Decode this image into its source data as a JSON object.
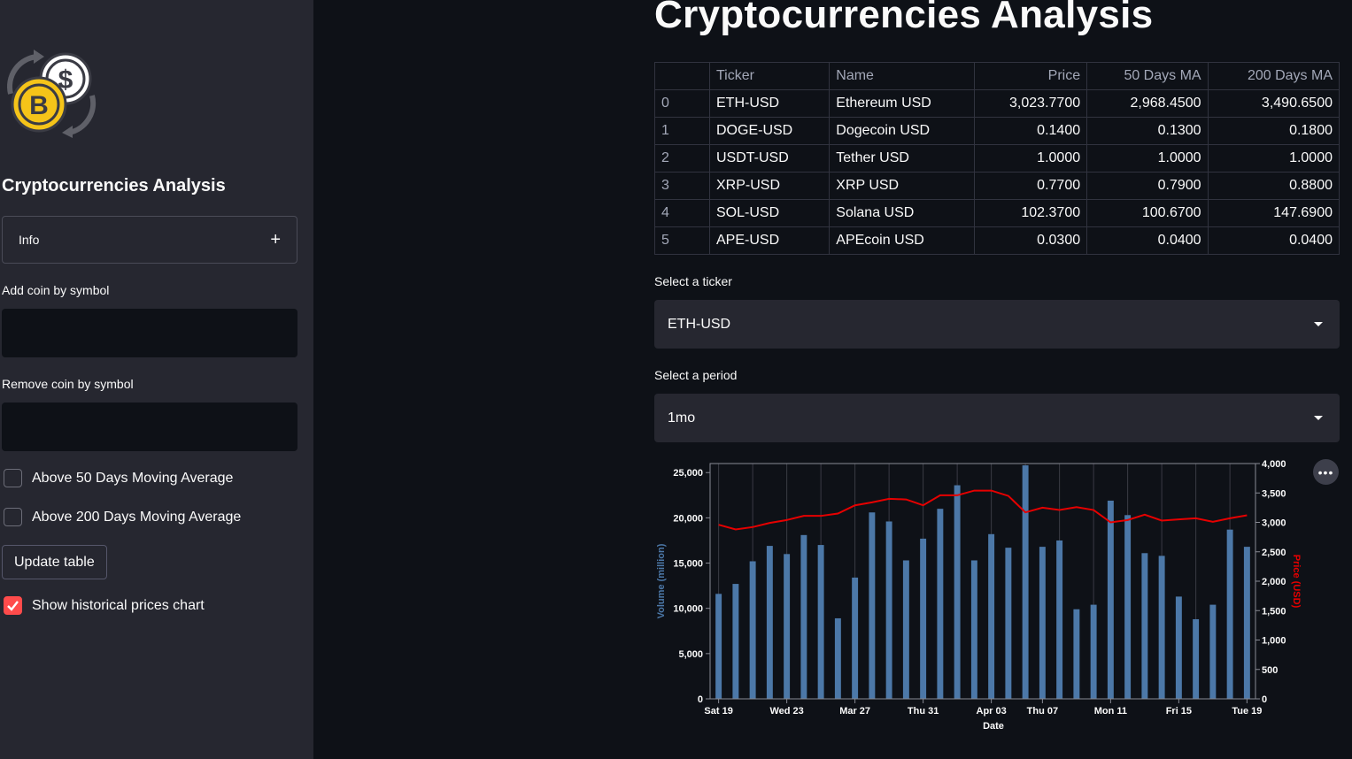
{
  "sidebar": {
    "logo_icon": "bitcoin-dollar-exchange-icon",
    "title": "Cryptocurrencies Analysis",
    "info_expander": {
      "label": "Info",
      "icon": "plus-icon"
    },
    "add_coin": {
      "label": "Add coin by symbol",
      "value": ""
    },
    "remove_coin": {
      "label": "Remove coin by symbol",
      "value": ""
    },
    "above50": {
      "label": "Above 50 Days Moving Average",
      "checked": false
    },
    "above200": {
      "label": "Above 200 Days Moving Average",
      "checked": false
    },
    "update_button": "Update table",
    "show_chart": {
      "label": "Show historical prices chart",
      "checked": true
    }
  },
  "main": {
    "title": "Cryptocurrencies Analysis",
    "table": {
      "columns": [
        "",
        "Ticker",
        "Name",
        "Price",
        "50 Days MA",
        "200 Days MA"
      ],
      "rows": [
        [
          "0",
          "ETH-USD",
          "Ethereum USD",
          "3,023.7700",
          "2,968.4500",
          "3,490.6500"
        ],
        [
          "1",
          "DOGE-USD",
          "Dogecoin USD",
          "0.1400",
          "0.1300",
          "0.1800"
        ],
        [
          "2",
          "USDT-USD",
          "Tether USD",
          "1.0000",
          "1.0000",
          "1.0000"
        ],
        [
          "3",
          "XRP-USD",
          "XRP USD",
          "0.7700",
          "0.7900",
          "0.8800"
        ],
        [
          "4",
          "SOL-USD",
          "Solana USD",
          "102.3700",
          "100.6700",
          "147.6900"
        ],
        [
          "5",
          "APE-USD",
          "APEcoin USD",
          "0.0300",
          "0.0400",
          "0.0400"
        ]
      ]
    },
    "ticker_select": {
      "label": "Select a ticker",
      "value": "ETH-USD"
    },
    "period_select": {
      "label": "Select a period",
      "value": "1mo"
    }
  },
  "chart_data": {
    "type": "bar+line",
    "xlabel": "Date",
    "ylabel_left": "Volume (million)",
    "ylabel_right": "Price (USD)",
    "ylim_left": [
      0,
      26000
    ],
    "ylim_right": [
      0,
      4000
    ],
    "x_ticks": [
      "Sat 19",
      "Wed 23",
      "Mar 27",
      "Thu 31",
      "Apr 03",
      "Thu 07",
      "Mon 11",
      "Fri 15",
      "Tue 19"
    ],
    "left_ticks": [
      "0",
      "5,000",
      "10,000",
      "15,000",
      "20,000",
      "25,000"
    ],
    "right_ticks": [
      "0",
      "500",
      "1,000",
      "1,500",
      "2,000",
      "2,500",
      "3,000",
      "3,500",
      "4,000"
    ],
    "volume": [
      11600,
      12700,
      15200,
      16900,
      16000,
      18100,
      17000,
      8900,
      13400,
      20600,
      19600,
      15300,
      17700,
      21000,
      23600,
      15300,
      18200,
      16700,
      25800,
      16800,
      17500,
      9900,
      10400,
      21900,
      20300,
      16100,
      15800,
      11300,
      8800,
      10400,
      18700,
      16800
    ],
    "price": [
      2960,
      2880,
      2920,
      2990,
      3040,
      3110,
      3110,
      3150,
      3290,
      3340,
      3400,
      3390,
      3290,
      3460,
      3460,
      3540,
      3540,
      3450,
      3170,
      3250,
      3210,
      3260,
      3210,
      3000,
      3040,
      3130,
      3030,
      3050,
      3070,
      3010,
      3070,
      3120
    ],
    "bar_color": "#4c78a8",
    "line_color": "#e60000",
    "ylabel_left_color": "#4c78a8",
    "ylabel_right_color": "#e60000"
  },
  "chart_menu_icon": "more-horizontal-icon"
}
